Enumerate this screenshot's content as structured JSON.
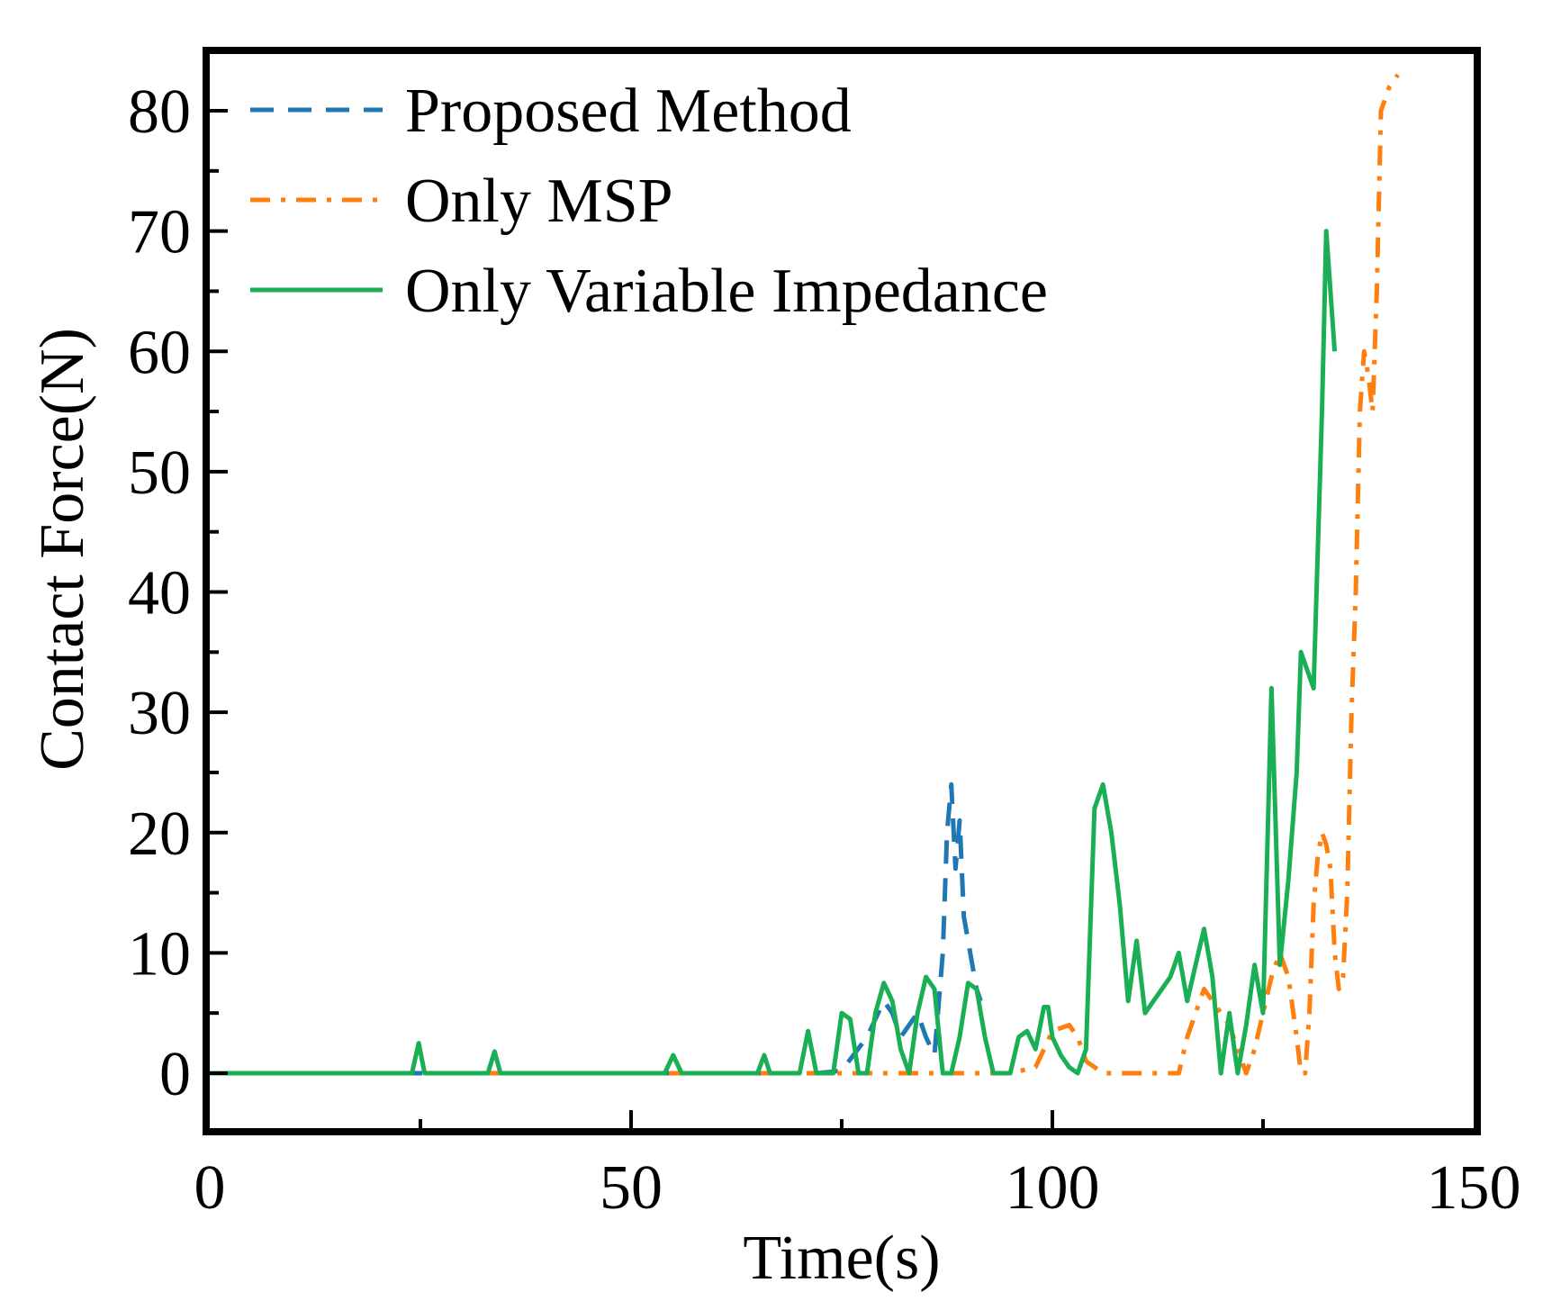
{
  "chart_data": {
    "type": "line",
    "title": "",
    "xlabel": "Time(s)",
    "ylabel": "Contact Force(N)",
    "xlim": [
      0,
      150
    ],
    "ylim": [
      -5,
      85
    ],
    "xticks": [
      0,
      50,
      100,
      150
    ],
    "yticks": [
      0,
      10,
      20,
      30,
      40,
      50,
      60,
      70,
      80
    ],
    "legend_position": "top-left",
    "series": [
      {
        "name": "Proposed Method",
        "color": "#1f77b4",
        "style": "dashed",
        "x": [
          0,
          20,
          70,
          72,
          75,
          78,
          80,
          81,
          82,
          83,
          84,
          85,
          86,
          87,
          87.5,
          88,
          88.5,
          89,
          89.5,
          90,
          90.5,
          91,
          91.5
        ],
        "y": [
          0,
          0,
          0,
          0,
          0.2,
          3,
          6,
          5,
          3,
          4,
          5,
          3,
          1.5,
          10,
          20,
          24,
          17,
          21,
          13,
          11,
          9,
          7,
          6
        ]
      },
      {
        "name": "Only MSP",
        "color": "#ff7f0e",
        "style": "dashdot",
        "x": [
          0,
          95,
          98,
          100,
          102,
          103,
          104,
          106,
          110,
          115,
          116,
          117,
          118,
          119,
          120,
          121,
          122,
          123,
          124,
          125,
          126,
          127,
          128,
          129,
          129.5,
          130,
          130.5,
          131,
          131.5,
          132,
          132.5,
          133,
          133.5,
          134,
          134.5,
          135,
          135.5,
          136,
          136.5,
          137,
          137.5,
          138,
          138.5,
          139,
          140,
          141
        ],
        "y": [
          0,
          0,
          0.5,
          3.5,
          4,
          3,
          1,
          0,
          0,
          0,
          3,
          5,
          7,
          6,
          5,
          4,
          2,
          0,
          2,
          5,
          8,
          10,
          8,
          3,
          0,
          0,
          5,
          14,
          18,
          20,
          19,
          17,
          10,
          7,
          8,
          15,
          30,
          40,
          55,
          60,
          58,
          55,
          65,
          80,
          82,
          83
        ]
      },
      {
        "name": "Only Variable Impedance",
        "color": "#1aaf54",
        "style": "solid",
        "x": [
          0,
          24,
          24.8,
          25.5,
          33,
          33.8,
          34.5,
          54,
          55,
          56,
          65,
          65.8,
          66.5,
          70,
          71,
          72,
          74,
          75,
          76,
          77,
          78,
          79,
          80,
          81,
          82,
          83,
          84,
          85,
          86,
          87,
          88,
          89,
          90,
          91,
          92,
          93,
          94,
          95,
          96,
          97,
          98,
          99,
          99.5,
          100,
          101,
          102,
          103,
          104,
          105,
          106,
          107,
          108,
          109,
          110,
          111,
          112,
          113,
          114,
          115,
          116,
          117,
          118,
          119,
          120,
          121,
          122,
          123,
          124,
          125,
          126,
          127,
          128,
          129,
          129.5,
          130,
          131,
          132,
          132.5,
          133,
          133.5
        ],
        "y": [
          0,
          0,
          2.5,
          0,
          0,
          1.8,
          0,
          0,
          1.5,
          0,
          0,
          1.5,
          0,
          0,
          3.5,
          0,
          0,
          5,
          4.5,
          0,
          0,
          5,
          7.5,
          6,
          2,
          0,
          5,
          8,
          7,
          0,
          0,
          3,
          7.5,
          7,
          3,
          0,
          0,
          0,
          3,
          3.5,
          2,
          5.5,
          5.5,
          3,
          1.5,
          0.5,
          0,
          2,
          22,
          24,
          20,
          14,
          6,
          11,
          5,
          6,
          7,
          8,
          10,
          6,
          9,
          12,
          8,
          0,
          5,
          0,
          4,
          9,
          5,
          32,
          9,
          16,
          25,
          35,
          34,
          32,
          55,
          70,
          65,
          60
        ]
      }
    ]
  }
}
